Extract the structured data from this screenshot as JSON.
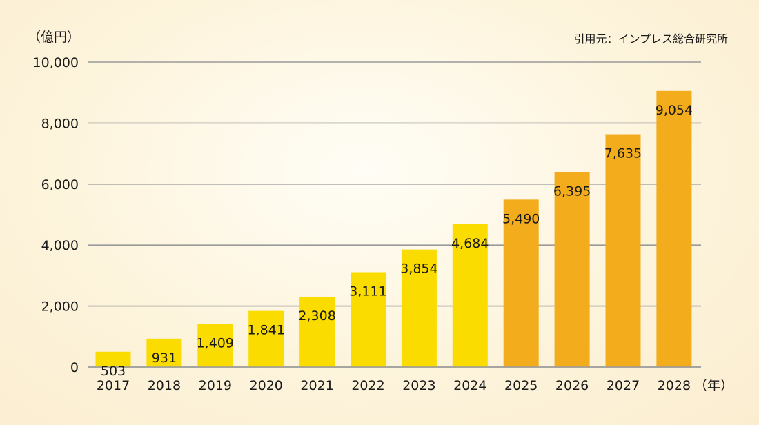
{
  "chart_data": {
    "type": "bar",
    "categories": [
      "2017",
      "2018",
      "2019",
      "2020",
      "2021",
      "2022",
      "2023",
      "2024",
      "2025",
      "2026",
      "2027",
      "2028"
    ],
    "values": [
      503,
      931,
      1409,
      1841,
      2308,
      3111,
      3854,
      4684,
      5490,
      6395,
      7635,
      9054
    ],
    "data_labels": [
      "503",
      "931",
      "1,409",
      "1,841",
      "2,308",
      "3,111",
      "3,854",
      "4,684",
      "5,490",
      "6,395",
      "7,635",
      "9,054"
    ],
    "ylabel": "（億円）",
    "xlabel": "（年）",
    "source": "引用元：インプレス総合研究所",
    "ylim": [
      0,
      10000
    ],
    "yticks": [
      0,
      2000,
      4000,
      6000,
      8000,
      10000
    ],
    "ytick_labels": [
      "0",
      "2,000",
      "4,000",
      "6,000",
      "8,000",
      "10,000"
    ],
    "grid": true,
    "forecast_from": "2025",
    "colors": {
      "actual": "#fbdc00",
      "forecast": "#f3ac1c",
      "grid": "#9a9a9a"
    }
  }
}
